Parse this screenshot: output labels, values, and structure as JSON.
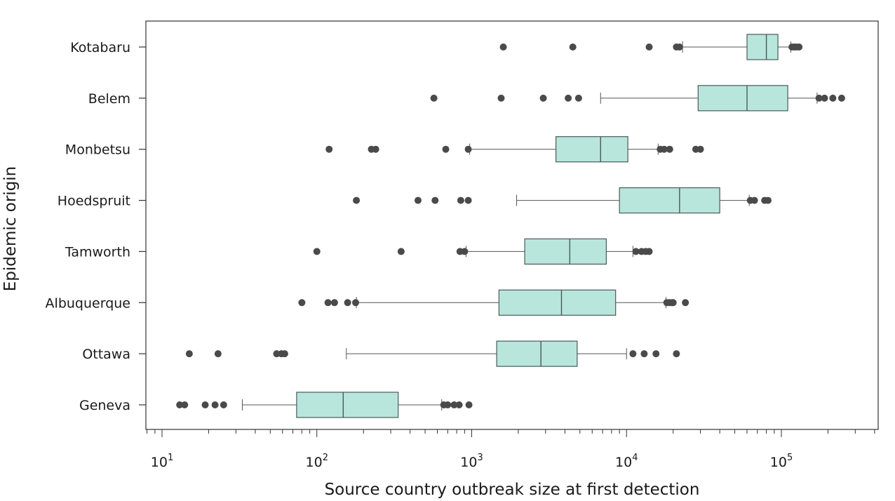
{
  "chart_data": {
    "type": "boxplot",
    "orientation": "horizontal",
    "xscale": "log",
    "xlim": [
      8,
      4000000
    ],
    "xlabel": "Source country outbreak size at first detection",
    "ylabel": "Epidemic origin",
    "x_ticks": [
      {
        "value": 10,
        "base": "10",
        "exp": "1"
      },
      {
        "value": 100,
        "base": "10",
        "exp": "2"
      },
      {
        "value": 1000,
        "base": "10",
        "exp": "3"
      },
      {
        "value": 10000,
        "base": "10",
        "exp": "4"
      },
      {
        "value": 100000,
        "base": "10",
        "exp": "5"
      }
    ],
    "box_color": "#b8e6dc",
    "outlier_color": "#4a4a4a",
    "categories": [
      {
        "name": "Kotabaru",
        "whisker_low": 23000,
        "q1": 60000,
        "median": 80000,
        "q3": 95000,
        "whisker_high": 115000,
        "outliers": [
          1600,
          4500,
          14000,
          21000,
          22000,
          117000,
          121000,
          125000,
          130000
        ]
      },
      {
        "name": "Belem",
        "whisker_low": 6800,
        "q1": 29000,
        "median": 60000,
        "q3": 110000,
        "whisker_high": 170000,
        "outliers": [
          570,
          1550,
          2900,
          4200,
          4900,
          175000,
          190000,
          215000,
          245000
        ]
      },
      {
        "name": "Monbetsu",
        "whisker_low": 970,
        "q1": 3500,
        "median": 6800,
        "q3": 10200,
        "whisker_high": 16000,
        "outliers": [
          120,
          225,
          240,
          680,
          950,
          16500,
          17500,
          19000,
          28000,
          30000
        ]
      },
      {
        "name": "Hoedspruit",
        "whisker_low": 1950,
        "q1": 9000,
        "median": 22000,
        "q3": 40000,
        "whisker_high": 62000,
        "outliers": [
          180,
          450,
          580,
          850,
          950,
          63000,
          67000,
          78000,
          82000
        ]
      },
      {
        "name": "Tamworth",
        "whisker_low": 920,
        "q1": 2200,
        "median": 4300,
        "q3": 7400,
        "whisker_high": 11000,
        "outliers": [
          100,
          350,
          840,
          900,
          11500,
          12500,
          13300,
          14000
        ]
      },
      {
        "name": "Albuquerque",
        "whisker_low": 180,
        "q1": 1500,
        "median": 3800,
        "q3": 8500,
        "whisker_high": 18000,
        "outliers": [
          80,
          118,
          130,
          158,
          178,
          18200,
          19000,
          19700,
          20000,
          24000
        ]
      },
      {
        "name": "Ottawa",
        "whisker_low": 155,
        "q1": 1450,
        "median": 2800,
        "q3": 4800,
        "whisker_high": 10000,
        "outliers": [
          15,
          23,
          55,
          59,
          62,
          11000,
          13000,
          15500,
          21000
        ]
      },
      {
        "name": "Geneva",
        "whisker_low": 33,
        "q1": 74,
        "median": 148,
        "q3": 335,
        "whisker_high": 640,
        "outliers": [
          13,
          14,
          19,
          22,
          25,
          660,
          700,
          770,
          830,
          960
        ]
      }
    ]
  }
}
